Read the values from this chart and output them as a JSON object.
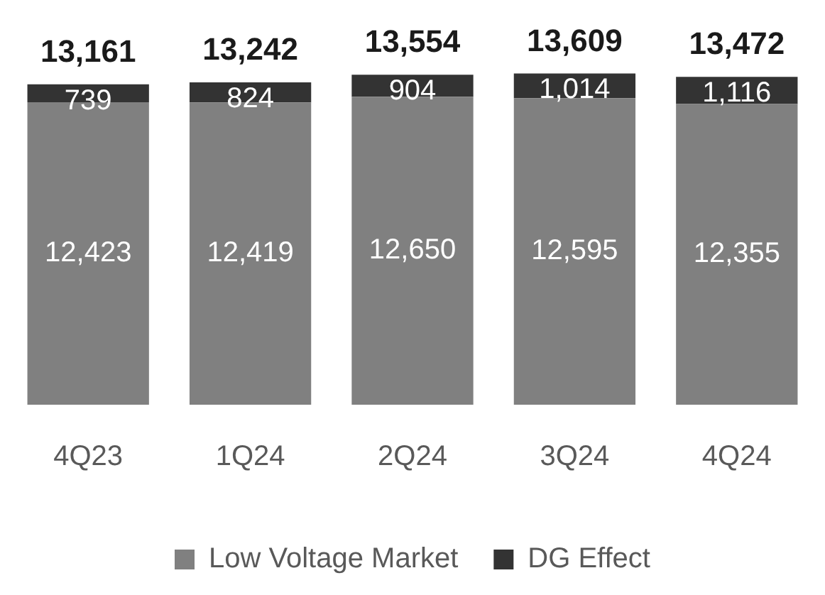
{
  "chart_data": {
    "type": "bar",
    "stacked": true,
    "categories": [
      "4Q23",
      "1Q24",
      "2Q24",
      "3Q24",
      "4Q24"
    ],
    "series": [
      {
        "name": "Low Voltage Market",
        "color": "#808080",
        "values": [
          12423,
          12419,
          12650,
          12595,
          12355
        ],
        "value_labels": [
          "12,423",
          "12,419",
          "12,650",
          "12,595",
          "12,355"
        ]
      },
      {
        "name": "DG Effect",
        "color": "#333333",
        "values": [
          739,
          824,
          904,
          1014,
          1116
        ],
        "value_labels": [
          "739",
          "824",
          "904",
          "1,014",
          "1,116"
        ]
      }
    ],
    "totals": [
      "13,161",
      "13,242",
      "13,554",
      "13,609",
      "13,472"
    ],
    "legend": "bottom",
    "grid": false
  }
}
